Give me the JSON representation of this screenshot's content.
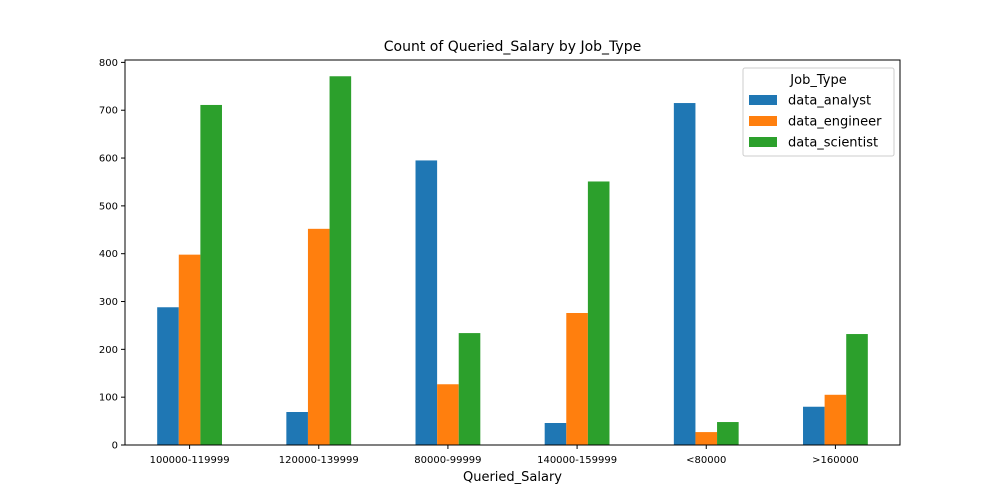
{
  "chart_data": {
    "type": "bar",
    "title": "Count of Queried_Salary by Job_Type",
    "xlabel": "Queried_Salary",
    "ylabel": "",
    "categories": [
      "100000-119999",
      "120000-139999",
      "80000-99999",
      "140000-159999",
      "<80000",
      ">160000"
    ],
    "series": [
      {
        "name": "data_analyst",
        "color": "#1f77b4",
        "values": [
          288,
          69,
          595,
          46,
          715,
          80
        ]
      },
      {
        "name": "data_engineer",
        "color": "#ff7f0e",
        "values": [
          398,
          452,
          127,
          276,
          27,
          105
        ]
      },
      {
        "name": "data_scientist",
        "color": "#2ca02c",
        "values": [
          711,
          771,
          234,
          551,
          48,
          232
        ]
      }
    ],
    "ylim": [
      0,
      805
    ],
    "yticks": [
      0,
      100,
      200,
      300,
      400,
      500,
      600,
      700,
      800
    ],
    "legend": {
      "title": "Job_Type",
      "position": "top-right"
    },
    "grid": false
  }
}
